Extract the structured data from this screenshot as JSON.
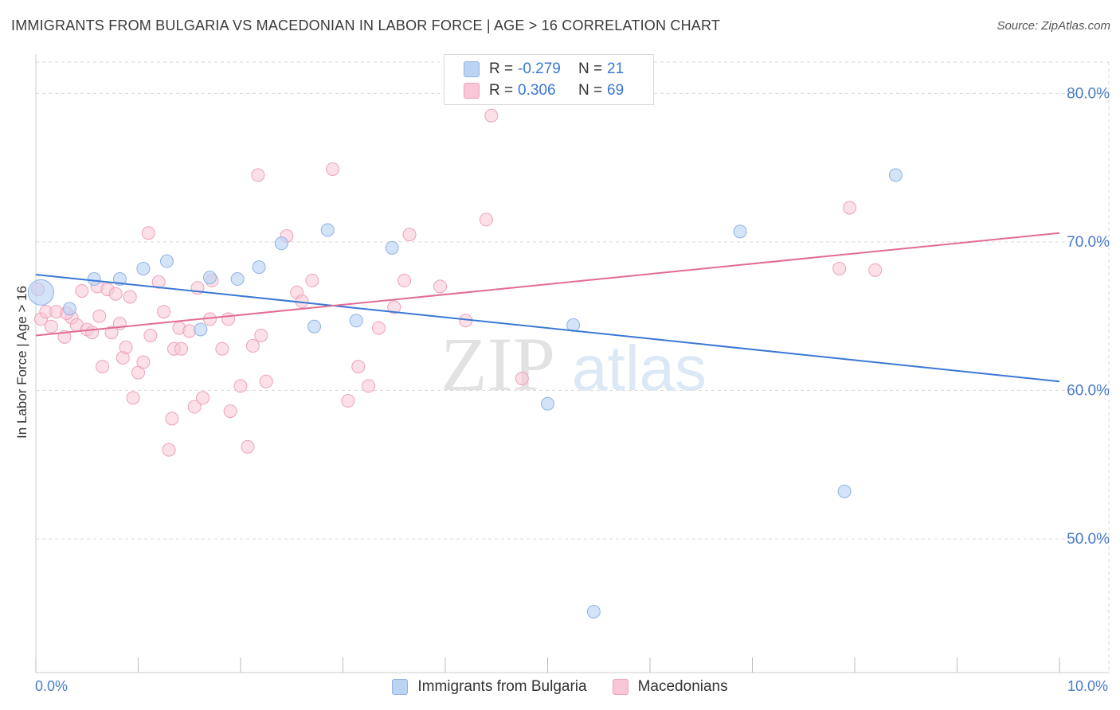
{
  "header": {
    "title": "IMMIGRANTS FROM BULGARIA VS MACEDONIAN IN LABOR FORCE | AGE > 16 CORRELATION CHART",
    "source": "Source: ZipAtlas.com"
  },
  "watermark": {
    "zip": "ZIP",
    "atlas": "atlas"
  },
  "legend": {
    "r_label": "R =",
    "n_label": "N =",
    "series": [
      {
        "r": "-0.279",
        "n": "21"
      },
      {
        "r": "0.306",
        "n": "69"
      }
    ]
  },
  "colors": {
    "blue_fill": "#bcd4f4",
    "blue_stroke": "#8fb2e6",
    "blue_line": "#3a78d4",
    "pink_fill": "#f8c6d6",
    "pink_stroke": "#eea2ba",
    "pink_line": "#e16c94",
    "axis_text": "#4a7cc9",
    "grid": "#d9d9d9"
  },
  "chart_data": {
    "type": "scatter",
    "title": "IMMIGRANTS FROM BULGARIA VS MACEDONIAN IN LABOR FORCE | AGE > 16 CORRELATION CHART",
    "xlabel": "",
    "ylabel": "In Labor Force | Age > 16",
    "xlim": [
      0,
      10
    ],
    "ylim": [
      41,
      82
    ],
    "x_ticks": [
      "0.0%",
      "10.0%"
    ],
    "y_ticks": [
      {
        "value": 50,
        "label": "50.0%"
      },
      {
        "value": 60,
        "label": "60.0%"
      },
      {
        "value": 70,
        "label": "70.0%"
      },
      {
        "value": 80,
        "label": "80.0%"
      }
    ],
    "grid": "horizontal dashed",
    "legend_position": "top-center",
    "series": [
      {
        "name": "Immigrants from Bulgaria",
        "color": "blue",
        "trend": [
          [
            0,
            67.8
          ],
          [
            10,
            60.6
          ]
        ],
        "points": [
          [
            0.05,
            66.6
          ],
          [
            0.33,
            65.5
          ],
          [
            0.57,
            67.5
          ],
          [
            0.82,
            67.5
          ],
          [
            1.05,
            68.2
          ],
          [
            1.28,
            68.7
          ],
          [
            1.61,
            64.1
          ],
          [
            1.7,
            67.6
          ],
          [
            1.97,
            67.5
          ],
          [
            2.18,
            68.3
          ],
          [
            2.4,
            69.9
          ],
          [
            2.72,
            64.3
          ],
          [
            2.85,
            70.8
          ],
          [
            3.13,
            64.7
          ],
          [
            3.48,
            69.6
          ],
          [
            5.0,
            59.1
          ],
          [
            5.25,
            64.4
          ],
          [
            5.45,
            45.1
          ],
          [
            6.88,
            70.7
          ],
          [
            7.9,
            53.2
          ],
          [
            8.4,
            74.5
          ]
        ]
      },
      {
        "name": "Macedonians",
        "color": "pink",
        "trend": [
          [
            0,
            63.7
          ],
          [
            10,
            70.6
          ]
        ],
        "points": [
          [
            0.02,
            66.8
          ],
          [
            0.05,
            64.8
          ],
          [
            0.1,
            65.3
          ],
          [
            0.15,
            64.3
          ],
          [
            0.2,
            65.3
          ],
          [
            0.28,
            63.6
          ],
          [
            0.35,
            64.9
          ],
          [
            0.4,
            64.4
          ],
          [
            0.45,
            66.7
          ],
          [
            0.5,
            64.1
          ],
          [
            0.55,
            63.9
          ],
          [
            0.6,
            67.0
          ],
          [
            0.62,
            65.0
          ],
          [
            0.65,
            61.6
          ],
          [
            0.7,
            66.8
          ],
          [
            0.74,
            63.9
          ],
          [
            0.78,
            66.5
          ],
          [
            0.82,
            64.5
          ],
          [
            0.85,
            62.2
          ],
          [
            0.88,
            62.9
          ],
          [
            0.92,
            66.3
          ],
          [
            0.95,
            59.5
          ],
          [
            1.0,
            61.2
          ],
          [
            1.05,
            61.9
          ],
          [
            1.1,
            70.6
          ],
          [
            1.12,
            63.7
          ],
          [
            1.2,
            67.3
          ],
          [
            1.25,
            65.3
          ],
          [
            1.3,
            56.0
          ],
          [
            1.33,
            58.1
          ],
          [
            1.35,
            62.8
          ],
          [
            1.4,
            64.2
          ],
          [
            1.42,
            62.8
          ],
          [
            1.5,
            64.0
          ],
          [
            1.55,
            58.9
          ],
          [
            1.58,
            66.9
          ],
          [
            1.63,
            59.5
          ],
          [
            1.7,
            64.8
          ],
          [
            1.72,
            67.4
          ],
          [
            1.82,
            62.8
          ],
          [
            1.88,
            64.8
          ],
          [
            1.9,
            58.6
          ],
          [
            2.0,
            60.3
          ],
          [
            2.07,
            56.2
          ],
          [
            2.12,
            63.0
          ],
          [
            2.17,
            74.5
          ],
          [
            2.2,
            63.7
          ],
          [
            2.25,
            60.6
          ],
          [
            2.45,
            70.4
          ],
          [
            2.55,
            66.6
          ],
          [
            2.6,
            66.0
          ],
          [
            2.7,
            67.4
          ],
          [
            2.9,
            74.9
          ],
          [
            3.05,
            59.3
          ],
          [
            3.15,
            61.6
          ],
          [
            3.25,
            60.3
          ],
          [
            3.35,
            64.2
          ],
          [
            3.5,
            65.6
          ],
          [
            3.6,
            67.4
          ],
          [
            3.65,
            70.5
          ],
          [
            3.95,
            67.0
          ],
          [
            4.2,
            64.7
          ],
          [
            4.4,
            71.5
          ],
          [
            4.75,
            60.8
          ],
          [
            4.45,
            78.5
          ],
          [
            7.85,
            68.2
          ],
          [
            7.95,
            72.3
          ],
          [
            8.2,
            68.1
          ],
          [
            0.3,
            65.2
          ]
        ]
      }
    ]
  }
}
